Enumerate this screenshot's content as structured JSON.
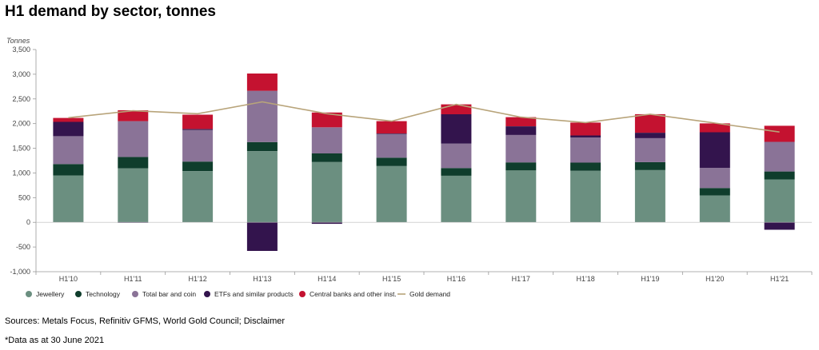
{
  "title": "H1 demand by sector, tonnes",
  "sources": "Sources: Metals Focus, Refinitiv GFMS, World Gold Council; Disclaimer",
  "footnote": "*Data as at 30 June 2021",
  "chart_data": {
    "type": "bar",
    "stacked": true,
    "title": "H1 demand by sector, tonnes",
    "ylabel": "Tonnes",
    "ylim": [
      -1000,
      3500
    ],
    "yticks": [
      -1000,
      -500,
      0,
      500,
      1000,
      1500,
      2000,
      2500,
      3000,
      3500
    ],
    "ytick_labels": [
      "-1,000",
      "-500",
      "0",
      "500",
      "1,000",
      "1,500",
      "2,000",
      "2,500",
      "3,000",
      "3,500"
    ],
    "categories": [
      "H1'10",
      "H1'11",
      "H1'12",
      "H1'13",
      "H1'14",
      "H1'15",
      "H1'16",
      "H1'17",
      "H1'18",
      "H1'19",
      "H1'20",
      "H1'21"
    ],
    "grid": false,
    "legend_position": "bottom",
    "series": [
      {
        "name": "Jewellery",
        "color": "#6b8f80",
        "values": [
          950,
          1095,
          1035,
          1440,
          1220,
          1140,
          945,
          1055,
          1045,
          1060,
          545,
          870
        ]
      },
      {
        "name": "Technology",
        "color": "#0f3d2c",
        "values": [
          230,
          230,
          195,
          185,
          175,
          170,
          155,
          160,
          165,
          160,
          150,
          160
        ]
      },
      {
        "name": "Total bar and coin",
        "color": "#8a7397",
        "values": [
          565,
          725,
          640,
          1040,
          530,
          480,
          495,
          555,
          510,
          485,
          410,
          600
        ]
      },
      {
        "name": "ETFs and similar products",
        "color": "#33144d",
        "values": [
          290,
          -10,
          20,
          -580,
          -30,
          10,
          595,
          175,
          40,
          110,
          720,
          -150
        ]
      },
      {
        "name": "Central banks and other inst.",
        "color": "#c41230",
        "values": [
          80,
          220,
          290,
          350,
          300,
          250,
          200,
          185,
          260,
          375,
          180,
          325
        ]
      }
    ],
    "line": {
      "name": "Gold demand",
      "color": "#b8a47a",
      "values": [
        2120,
        2260,
        2200,
        2440,
        2200,
        2050,
        2390,
        2130,
        2020,
        2190,
        2010,
        1830
      ]
    }
  }
}
